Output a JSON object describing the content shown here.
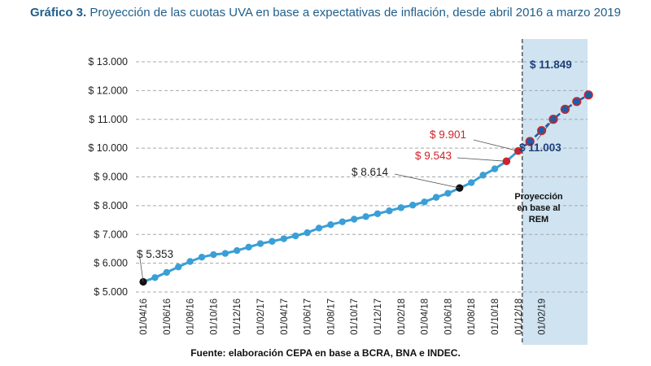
{
  "title": {
    "bold": "Gráfico 3.",
    "text": " Proyección de las cuotas UVA en base a expectativas de inflación, desde abril 2016 a marzo 2019"
  },
  "source": "Fuente: elaboración CEPA en base a BCRA, BNA e INDEC.",
  "chart_data": {
    "type": "line",
    "title": "",
    "xlabel": "",
    "ylabel": "",
    "ylim": [
      5000,
      13000
    ],
    "grid": "horizontal dashed",
    "y_ticks": [
      "$ 5.000",
      "$ 6.000",
      "$ 7.000",
      "$ 8.000",
      "$ 9.000",
      "$ 10.000",
      "$ 11.000",
      "$ 12.000",
      "$ 13.000"
    ],
    "y_tick_values": [
      5000,
      6000,
      7000,
      8000,
      9000,
      10000,
      11000,
      12000,
      13000
    ],
    "x_ticks": [
      "01/04/16",
      "01/06/16",
      "01/08/16",
      "01/10/16",
      "01/12/16",
      "01/02/17",
      "01/04/17",
      "01/06/17",
      "01/08/17",
      "01/10/17",
      "01/12/17",
      "01/02/18",
      "01/04/18",
      "01/06/18",
      "01/08/18",
      "01/10/18",
      "01/12/18",
      "01/02/19"
    ],
    "series": [
      {
        "values": [
          5353,
          5500,
          5680,
          5870,
          6060,
          6210,
          6300,
          6340,
          6440,
          6560,
          6680,
          6760,
          6850,
          6950,
          7060,
          7220,
          7340,
          7440,
          7530,
          7620,
          7720,
          7820,
          7930,
          8020,
          8130,
          8290,
          8430,
          8614,
          8800,
          9060,
          9280,
          9543,
          9901
        ],
        "color": "#3a9fd6"
      },
      {
        "values": [
          10230,
          10610,
          11003,
          11350,
          11620,
          11849
        ],
        "color": "#1a5ea8"
      }
    ],
    "start_date": "01/04/16",
    "annotations": [
      {
        "label": "$ 5.353",
        "value": 5353,
        "color": "#222222"
      },
      {
        "label": "$ 8.614",
        "value": 8614,
        "color": "#222222"
      },
      {
        "label": "$ 9.543",
        "value": 9543,
        "color": "#d0232a"
      },
      {
        "label": "$ 9.901",
        "value": 9901,
        "color": "#d0232a"
      },
      {
        "label": "$ 11.003",
        "value": 11003,
        "color": "#1f3f7a"
      },
      {
        "label": "$ 11.849",
        "value": 11849,
        "color": "#1f3f7a"
      }
    ],
    "projection_region": {
      "label_lines": [
        "Proyección",
        "en base al",
        "REM"
      ],
      "color": "#cfe3f1"
    },
    "colors": {
      "historical_line": "#3a9fd6",
      "projection_line": "#1a5ea8",
      "highlight_red": "#d0232a",
      "marker_black": "#111111"
    }
  }
}
